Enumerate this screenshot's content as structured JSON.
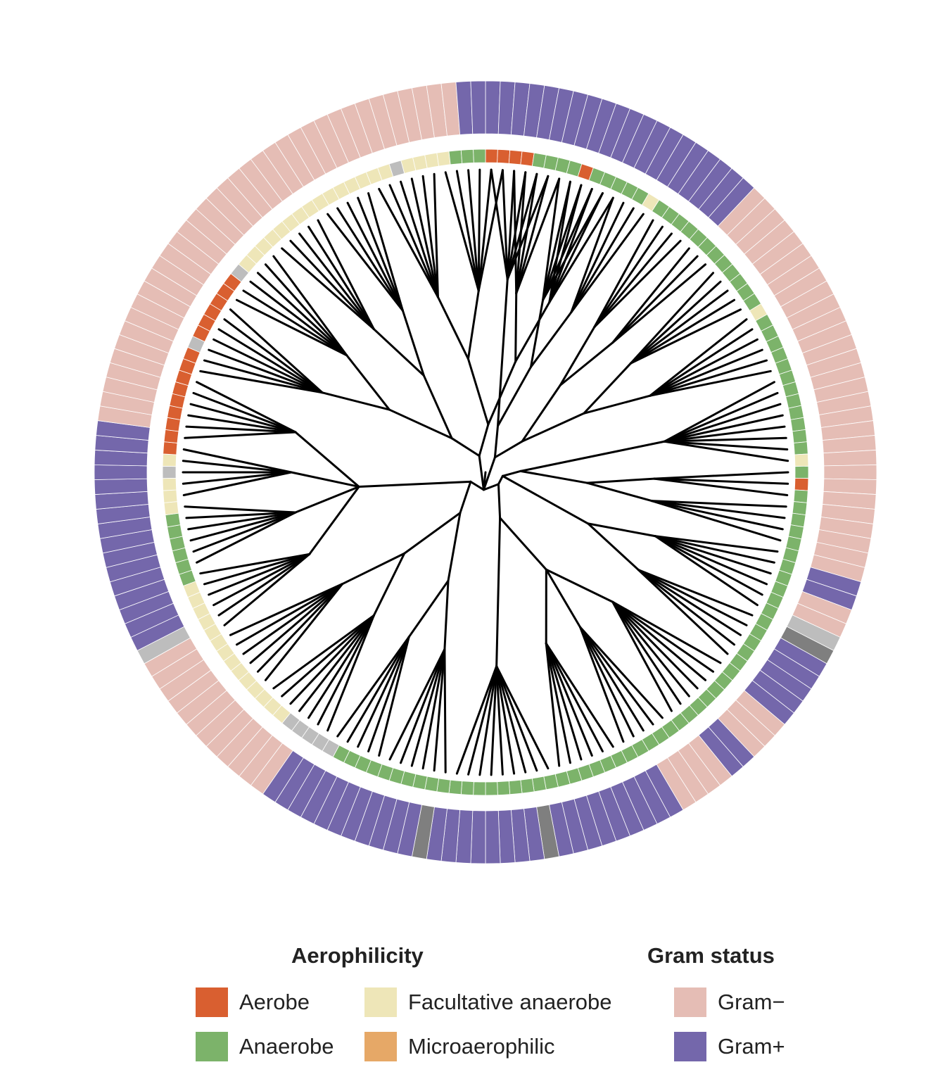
{
  "colors": {
    "aerobe": "#d95f30",
    "anaerobe": "#7cb36a",
    "facultative": "#eee6b8",
    "microaerophilic": "#e6a867",
    "gram_neg": "#e5bdb5",
    "gram_pos": "#7467ab",
    "unknown_light": "#bdbdbd",
    "unknown_dark": "#7f7f7f",
    "branch": "#000000"
  },
  "tree": {
    "leaf_count": 166,
    "aerophilicity_ring": "RRRRAAAARAAAAAFAAAAAAAAAAAAFAAAAAAAAAAAAFARAAAAAAAAAAAAAAAAAAAAAAAAAAAAAAAAAAAAAAAAAAAAAAAAAAAAAUUUUUFFFFFFFFFFFFFFAAAAAAFFFUFRRRRRRRRRURRRRRRUFFFFFFFFFFFFFFFUFFFFAAAAAF",
    "gram_ring": "PPPPPPPPPPPPPPPPPPPPNNNNNNNNNNNNNNNNNNNNNNNNNNNNNPPNNUDPPPPPNNNPPNNNNPPPPPPPPPDPPPPPPPPDPPPPPPPPPPPNNNNNNNNNNNNUPPPPPPPPPPPPPPPPNNNNNNNNNNNNNNNNNNNNNNNNNNNNNNNNNNNNPPPPPPPPUPPPP"
  },
  "legend": {
    "aerophilicity": {
      "title": "Aerophilicity",
      "aerobe": "Aerobe",
      "anaerobe": "Anaerobe",
      "facultative": "Facultative anaerobe",
      "microaerophilic": "Microaerophilic"
    },
    "gram": {
      "title": "Gram status",
      "negative": "Gram−",
      "positive": "Gram+"
    }
  }
}
